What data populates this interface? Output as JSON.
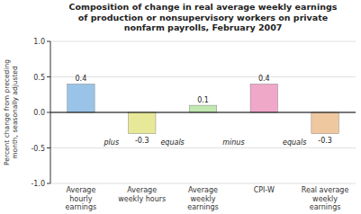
{
  "chart_data": {
    "type": "bar",
    "title": "Composition of change in real average weekly earnings\nof production or nonsupervisory workers on private\nnonfarm payrolls, February 2007",
    "categories": [
      "Average\nhourly\nearnings",
      "Average\nweekly hours",
      "Average\nweekly\nearnings",
      "CPI-W",
      "Real average\nweekly\nearnings"
    ],
    "values": [
      0.4,
      -0.3,
      0.1,
      0.4,
      -0.3
    ],
    "colors": [
      "#99c4e8",
      "#e8e899",
      "#c0e8b0",
      "#f0a8c8",
      "#f0c8a0"
    ],
    "data_labels": true,
    "annotations": [
      "plus",
      "equals",
      "minus",
      "equals"
    ],
    "ylabel": "Percent change from preceding\nmonth, seasonally adjusted",
    "ylim": [
      -1.0,
      1.0
    ],
    "yticks": [
      {
        "value": -1.0,
        "label": "-1.0"
      },
      -0.5,
      {
        "value": 0.0,
        "label": "0.0"
      },
      0.5,
      {
        "value": 1.0,
        "label": "1.0"
      }
    ],
    "grid": true
  }
}
